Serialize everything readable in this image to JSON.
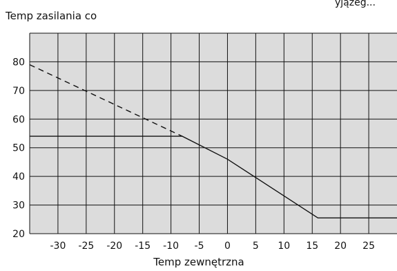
{
  "chart_data": {
    "type": "line",
    "title": "",
    "ylabel": "Temp zasilania co",
    "xlabel": "Temp zewnętrzna",
    "top_fragment": "yjązeg...",
    "xlim": [
      -35,
      30
    ],
    "ylim": [
      20,
      90
    ],
    "x_ticks": [
      -30,
      -25,
      -20,
      -15,
      -10,
      -5,
      0,
      5,
      10,
      15,
      20,
      25
    ],
    "x_tick_labels": [
      "-30",
      "-25",
      "-20",
      "-15",
      "-10",
      "-5",
      "0",
      "5",
      "10",
      "15",
      "20",
      "25"
    ],
    "y_ticks": [
      20,
      30,
      40,
      50,
      60,
      70,
      80
    ],
    "y_tick_labels": [
      "20",
      "30",
      "40",
      "50",
      "60",
      "70",
      "80"
    ],
    "grid": true,
    "colors": {
      "background": "#dcdcdc",
      "grid": "#111111",
      "line": "#111111"
    },
    "series": [
      {
        "style": "solid",
        "points": [
          [
            -35,
            54
          ],
          [
            -8,
            54
          ],
          [
            0,
            46
          ],
          [
            16,
            25.5
          ],
          [
            30,
            25.5
          ]
        ]
      },
      {
        "style": "dashed",
        "points": [
          [
            -35,
            79
          ],
          [
            -8,
            54
          ]
        ]
      }
    ]
  }
}
